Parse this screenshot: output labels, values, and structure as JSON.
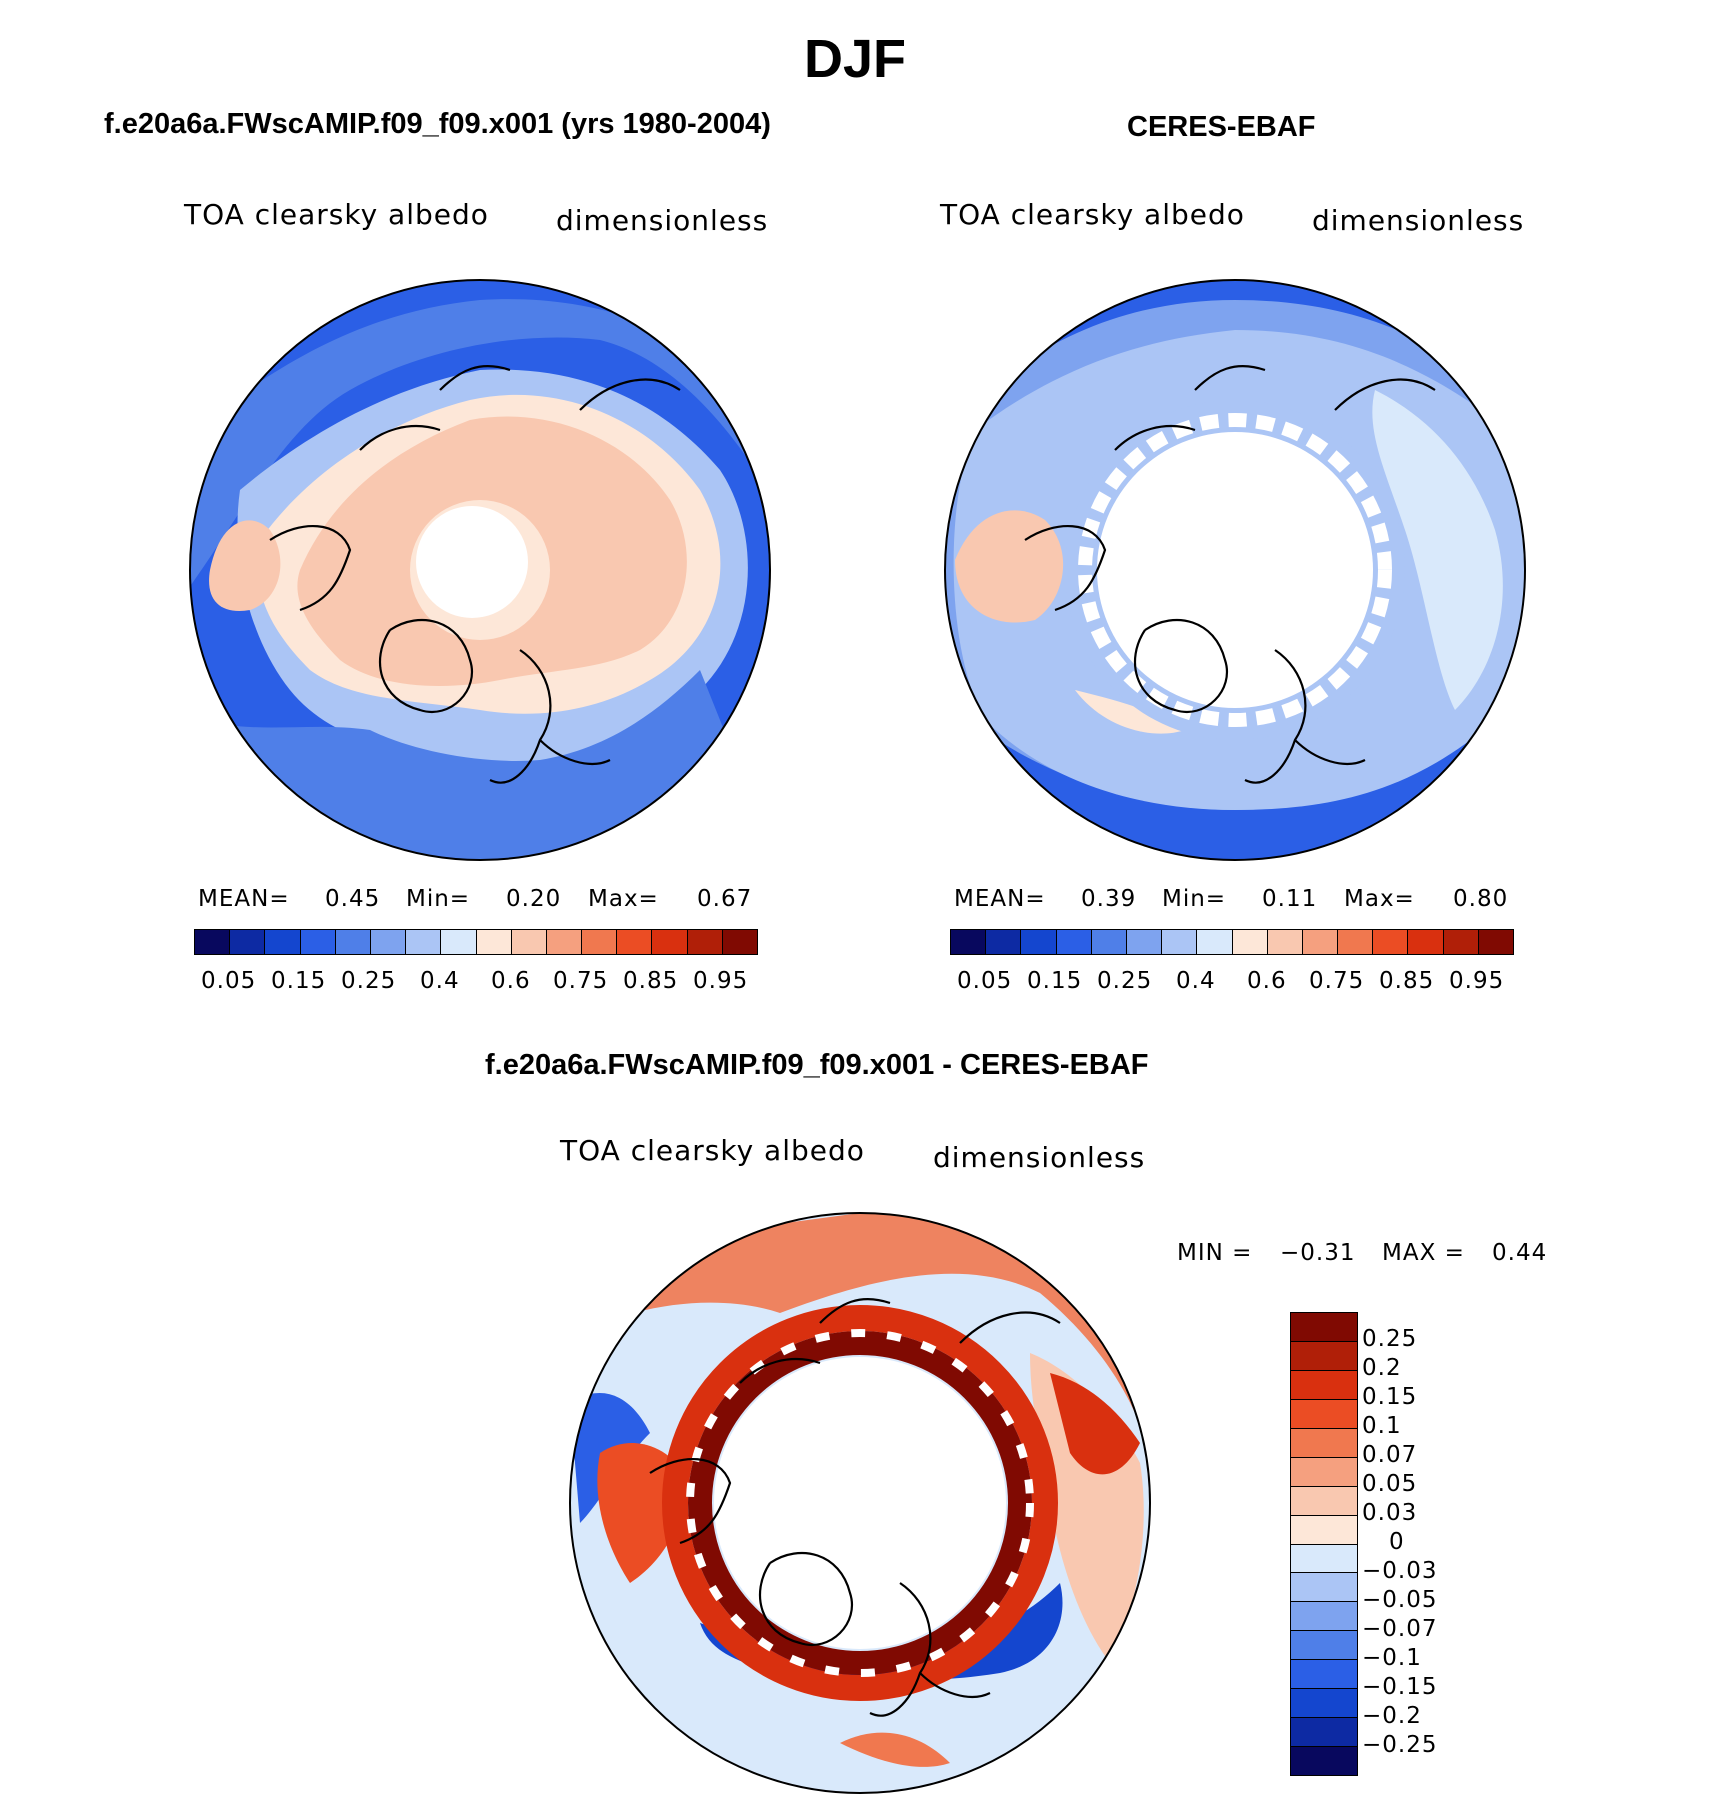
{
  "title": "DJF",
  "panels": {
    "model": {
      "case_title": "f.e20a6a.FWscAMIP.f09_f09.x001 (yrs 1980-2004)",
      "variable": "TOA clearsky albedo",
      "units": "dimensionless",
      "stats": {
        "mean_label": "MEAN=",
        "mean": "0.45",
        "min_label": "Min=",
        "min": "0.20",
        "max_label": "Max=",
        "max": "0.67"
      },
      "colorbar_ticks": [
        "0.05",
        "0.15",
        "0.25",
        "0.4",
        "0.6",
        "0.75",
        "0.85",
        "0.95"
      ]
    },
    "obs": {
      "case_title": "CERES-EBAF",
      "variable": "TOA clearsky albedo",
      "units": "dimensionless",
      "stats": {
        "mean_label": "MEAN=",
        "mean": "0.39",
        "min_label": "Min=",
        "min": "0.11",
        "max_label": "Max=",
        "max": "0.80"
      },
      "colorbar_ticks": [
        "0.05",
        "0.15",
        "0.25",
        "0.4",
        "0.6",
        "0.75",
        "0.85",
        "0.95"
      ]
    },
    "diff": {
      "case_title": "f.e20a6a.FWscAMIP.f09_f09.x001 - CERES-EBAF",
      "variable": "TOA clearsky albedo",
      "units": "dimensionless",
      "stats": {
        "min_label": "MIN =",
        "min": "−0.31",
        "max_label": "MAX =",
        "max": "0.44"
      },
      "colorbar_ticks": [
        "0.25",
        "0.2",
        "0.15",
        "0.1",
        "0.07",
        "0.05",
        "0.03",
        "0",
        "−0.03",
        "−0.05",
        "−0.07",
        "−0.1",
        "−0.15",
        "−0.2",
        "−0.25"
      ]
    }
  },
  "colors": {
    "abs_scale": [
      "#08085e",
      "#0d2aa3",
      "#1446cf",
      "#2b5fe6",
      "#4f7fe8",
      "#7ea3ef",
      "#abc5f5",
      "#d9e9fb",
      "#fde7d8",
      "#f9c8b0",
      "#f5a07f",
      "#f0784f",
      "#eb4d24",
      "#d9300f",
      "#b01f08",
      "#800a02"
    ],
    "diff_scale": [
      "#800a02",
      "#b01f08",
      "#d9300f",
      "#eb4d24",
      "#f0784f",
      "#f5a07f",
      "#f9c8b0",
      "#fde7d8",
      "#d9e9fb",
      "#abc5f5",
      "#7ea3ef",
      "#4f7fe8",
      "#2b5fe6",
      "#1446cf",
      "#0d2aa3",
      "#08085e"
    ]
  }
}
